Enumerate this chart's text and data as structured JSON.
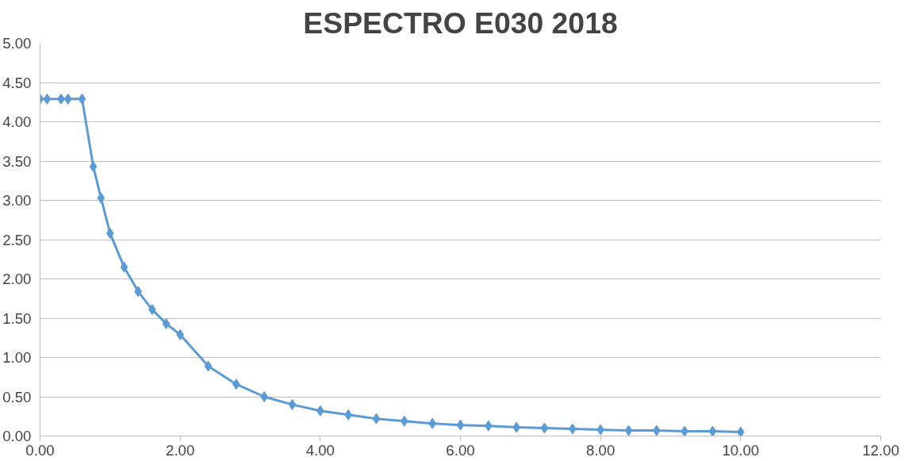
{
  "chart_data": {
    "type": "line",
    "title": "ESPECTRO E030 2018",
    "x": [
      0,
      0.1,
      0.3,
      0.4,
      0.6,
      0.76,
      0.87,
      1.0,
      1.2,
      1.4,
      1.6,
      1.8,
      2.0,
      2.4,
      2.8,
      3.2,
      3.6,
      4.0,
      4.4,
      4.8,
      5.2,
      5.6,
      6.0,
      6.4,
      6.8,
      7.2,
      7.6,
      8.0,
      8.4,
      8.8,
      9.2,
      9.6,
      10.0
    ],
    "series": [
      {
        "color": "#5b9bd5",
        "values": [
          4.29,
          4.29,
          4.29,
          4.29,
          4.29,
          3.43,
          3.03,
          2.58,
          2.15,
          1.84,
          1.61,
          1.43,
          1.29,
          0.89,
          0.66,
          0.5,
          0.4,
          0.32,
          0.27,
          0.22,
          0.19,
          0.16,
          0.14,
          0.13,
          0.11,
          0.1,
          0.09,
          0.08,
          0.07,
          0.07,
          0.06,
          0.06,
          0.05
        ]
      }
    ],
    "xlim": [
      0,
      12
    ],
    "xticks": [
      {
        "value": 0,
        "label": "0.00"
      },
      {
        "value": 2,
        "label": "2.00"
      },
      {
        "value": 4,
        "label": "4.00"
      },
      {
        "value": 6,
        "label": "6.00"
      },
      {
        "value": 8,
        "label": "8.00"
      },
      {
        "value": 10,
        "label": "10.00"
      },
      {
        "value": 12,
        "label": "12.00"
      }
    ],
    "ylim": [
      0,
      5
    ],
    "yticks": [
      {
        "value": 0,
        "label": "0.00"
      },
      {
        "value": 0.5,
        "label": "0.50"
      },
      {
        "value": 1,
        "label": "1.00"
      },
      {
        "value": 1.5,
        "label": "1.50"
      },
      {
        "value": 2,
        "label": "2.00"
      },
      {
        "value": 2.5,
        "label": "2.50"
      },
      {
        "value": 3,
        "label": "3.00"
      },
      {
        "value": 3.5,
        "label": "3.50"
      },
      {
        "value": 4,
        "label": "4.00"
      },
      {
        "value": 4.5,
        "label": "4.50"
      },
      {
        "value": 5,
        "label": "5.00"
      }
    ],
    "grid": "y",
    "marker": "diamond",
    "line_style": "solid"
  }
}
